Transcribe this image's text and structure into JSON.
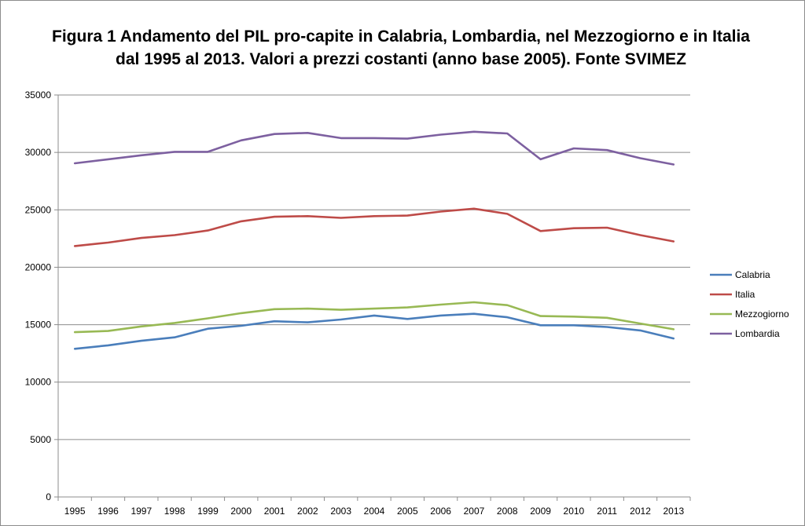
{
  "chart_data": {
    "type": "line",
    "title": "Figura  1 Andamento del PIL pro-capite in Calabria, Lombardia, nel Mezzogiorno e in Italia dal 1995 al 2013. Valori a prezzi costanti (anno base 2005). Fonte SVIMEZ",
    "xlabel": "",
    "ylabel": "",
    "ylim": [
      0,
      35000
    ],
    "yticks": [
      0,
      5000,
      10000,
      15000,
      20000,
      25000,
      30000,
      35000
    ],
    "grid": true,
    "legend_position": "right",
    "categories": [
      "1995",
      "1996",
      "1997",
      "1998",
      "1999",
      "2000",
      "2001",
      "2002",
      "2003",
      "2004",
      "2005",
      "2006",
      "2007",
      "2008",
      "2009",
      "2010",
      "2011",
      "2012",
      "2013"
    ],
    "series": [
      {
        "name": "Calabria",
        "color": "#4a7ebb",
        "values": [
          12900,
          13200,
          13600,
          13900,
          14650,
          14900,
          15300,
          15200,
          15450,
          15800,
          15500,
          15800,
          15950,
          15650,
          14950,
          14950,
          14800,
          14500,
          13800
        ]
      },
      {
        "name": "Italia",
        "color": "#be4b48",
        "values": [
          21850,
          22150,
          22550,
          22800,
          23200,
          24000,
          24400,
          24450,
          24300,
          24450,
          24500,
          24850,
          25100,
          24650,
          23150,
          23400,
          23450,
          22800,
          22250
        ]
      },
      {
        "name": "Mezzogiorno",
        "color": "#98b954",
        "values": [
          14350,
          14450,
          14850,
          15150,
          15550,
          16000,
          16350,
          16400,
          16300,
          16400,
          16500,
          16750,
          16950,
          16700,
          15750,
          15700,
          15600,
          15100,
          14600
        ]
      },
      {
        "name": "Lombardia",
        "color": "#7d60a0",
        "values": [
          29050,
          29400,
          29750,
          30050,
          30050,
          31050,
          31600,
          31700,
          31250,
          31250,
          31200,
          31550,
          31800,
          31650,
          29400,
          30350,
          30200,
          29500,
          28950
        ]
      }
    ]
  }
}
